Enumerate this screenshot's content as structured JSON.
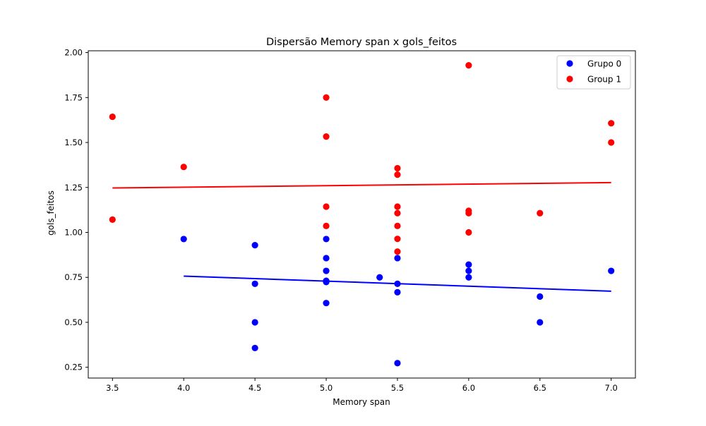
{
  "chart_data": {
    "type": "scatter",
    "title": "Dispersão Memory span x gols_feitos",
    "xlabel": "Memory span",
    "ylabel": "gols_feitos",
    "xlim": [
      3.33,
      7.17
    ],
    "ylim": [
      0.19,
      2.01
    ],
    "xticks": [
      3.5,
      4.0,
      4.5,
      5.0,
      5.5,
      6.0,
      6.5,
      7.0
    ],
    "xtick_labels": [
      "3.5",
      "4.0",
      "4.5",
      "5.0",
      "5.5",
      "6.0",
      "6.5",
      "7.0"
    ],
    "yticks": [
      0.25,
      0.5,
      0.75,
      1.0,
      1.25,
      1.5,
      1.75,
      2.0
    ],
    "ytick_labels": [
      "0.25",
      "0.50",
      "0.75",
      "1.00",
      "1.25",
      "1.50",
      "1.75",
      "2.00"
    ],
    "grid": false,
    "legend_position": "top-right",
    "series": [
      {
        "name": "Grupo 0",
        "color": "#0000ff",
        "points": [
          {
            "x": 4.0,
            "y": 0.963
          },
          {
            "x": 4.5,
            "y": 0.929
          },
          {
            "x": 4.5,
            "y": 0.714
          },
          {
            "x": 4.5,
            "y": 0.5
          },
          {
            "x": 4.5,
            "y": 0.357
          },
          {
            "x": 5.0,
            "y": 0.963
          },
          {
            "x": 5.0,
            "y": 0.857
          },
          {
            "x": 5.0,
            "y": 0.786
          },
          {
            "x": 5.0,
            "y": 0.731
          },
          {
            "x": 5.0,
            "y": 0.724
          },
          {
            "x": 5.0,
            "y": 0.607
          },
          {
            "x": 5.375,
            "y": 0.75
          },
          {
            "x": 5.5,
            "y": 0.857
          },
          {
            "x": 5.5,
            "y": 0.714
          },
          {
            "x": 5.5,
            "y": 0.667
          },
          {
            "x": 5.5,
            "y": 0.273
          },
          {
            "x": 6.0,
            "y": 0.821
          },
          {
            "x": 6.0,
            "y": 0.786
          },
          {
            "x": 6.0,
            "y": 0.75
          },
          {
            "x": 6.5,
            "y": 0.643
          },
          {
            "x": 6.5,
            "y": 0.5
          },
          {
            "x": 7.0,
            "y": 0.786
          }
        ],
        "trend_line": {
          "x": [
            4.0,
            7.0
          ],
          "y": [
            0.757,
            0.673
          ]
        }
      },
      {
        "name": "Group 1",
        "color": "#ff0000",
        "points": [
          {
            "x": 3.5,
            "y": 1.643
          },
          {
            "x": 3.5,
            "y": 1.071
          },
          {
            "x": 4.0,
            "y": 1.364
          },
          {
            "x": 5.0,
            "y": 1.75
          },
          {
            "x": 5.0,
            "y": 1.533
          },
          {
            "x": 5.0,
            "y": 1.143
          },
          {
            "x": 5.0,
            "y": 1.036
          },
          {
            "x": 5.5,
            "y": 1.357
          },
          {
            "x": 5.5,
            "y": 1.321
          },
          {
            "x": 5.5,
            "y": 1.143
          },
          {
            "x": 5.5,
            "y": 1.107
          },
          {
            "x": 5.5,
            "y": 1.036
          },
          {
            "x": 5.5,
            "y": 0.964
          },
          {
            "x": 5.5,
            "y": 0.893
          },
          {
            "x": 6.0,
            "y": 1.929
          },
          {
            "x": 6.0,
            "y": 1.12
          },
          {
            "x": 6.0,
            "y": 1.107
          },
          {
            "x": 6.0,
            "y": 1.0
          },
          {
            "x": 6.5,
            "y": 1.107
          },
          {
            "x": 7.0,
            "y": 1.607
          },
          {
            "x": 7.0,
            "y": 1.5
          }
        ],
        "trend_line": {
          "x": [
            3.5,
            7.0
          ],
          "y": [
            1.247,
            1.277
          ]
        }
      }
    ]
  }
}
